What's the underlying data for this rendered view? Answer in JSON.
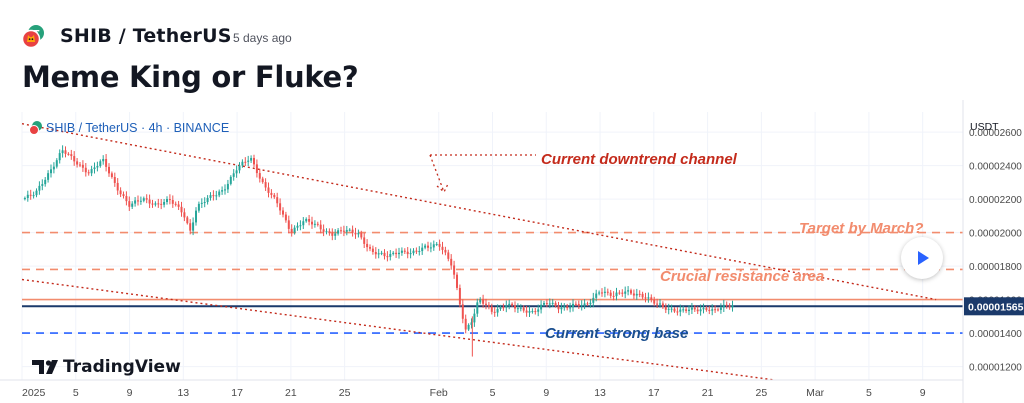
{
  "header": {
    "symbol": "SHIB / TetherUS",
    "time_ago": "5 days ago",
    "idea_title": "Meme King or Fluke?"
  },
  "chart_data": {
    "type": "candlestick",
    "legend": "SHIB / TetherUS · 4h · BINANCE",
    "currency": "USDT",
    "watermark": "TradingView",
    "ylim": [
      1.12e-05,
      2.72e-05
    ],
    "y_ticks": [
      1.2e-05,
      1.4e-05,
      1.6e-05,
      1.8e-05,
      2e-05,
      2.2e-05,
      2.4e-05,
      2.6e-05
    ],
    "y_tick_labels": [
      "0.00001200",
      "0.00001400",
      "0.00001600",
      "0.00001800",
      "0.00002000",
      "0.00002200",
      "0.00002400",
      "0.00002600"
    ],
    "x_dates": [
      "2025-01-01",
      "2025-03-12"
    ],
    "x_ticks": [
      {
        "date": "2025-01-01",
        "label": "2025"
      },
      {
        "date": "2025-01-05",
        "label": "5"
      },
      {
        "date": "2025-01-09",
        "label": "9"
      },
      {
        "date": "2025-01-13",
        "label": "13"
      },
      {
        "date": "2025-01-17",
        "label": "17"
      },
      {
        "date": "2025-01-21",
        "label": "21"
      },
      {
        "date": "2025-01-25",
        "label": "25"
      },
      {
        "date": "2025-02-01",
        "label": "Feb"
      },
      {
        "date": "2025-02-05",
        "label": "5"
      },
      {
        "date": "2025-02-09",
        "label": "9"
      },
      {
        "date": "2025-02-13",
        "label": "13"
      },
      {
        "date": "2025-02-17",
        "label": "17"
      },
      {
        "date": "2025-02-21",
        "label": "21"
      },
      {
        "date": "2025-02-25",
        "label": "25"
      },
      {
        "date": "2025-03-01",
        "label": "Mar"
      },
      {
        "date": "2025-03-05",
        "label": "5"
      },
      {
        "date": "2025-03-09",
        "label": "9"
      }
    ],
    "price_path": [
      {
        "date": "2025-01-01T00",
        "price": 2.2e-05
      },
      {
        "date": "2025-01-02T00",
        "price": 2.23e-05
      },
      {
        "date": "2025-01-03T00",
        "price": 2.36e-05
      },
      {
        "date": "2025-01-04T00",
        "price": 2.49e-05
      },
      {
        "date": "2025-01-05T00",
        "price": 2.42e-05
      },
      {
        "date": "2025-01-06T00",
        "price": 2.36e-05
      },
      {
        "date": "2025-01-07T00",
        "price": 2.43e-05
      },
      {
        "date": "2025-01-08T00",
        "price": 2.28e-05
      },
      {
        "date": "2025-01-09T00",
        "price": 2.16e-05
      },
      {
        "date": "2025-01-10T00",
        "price": 2.2e-05
      },
      {
        "date": "2025-01-11T00",
        "price": 2.17e-05
      },
      {
        "date": "2025-01-12T00",
        "price": 2.19e-05
      },
      {
        "date": "2025-01-13T00",
        "price": 2.12e-05
      },
      {
        "date": "2025-01-13T12",
        "price": 2.01e-05
      },
      {
        "date": "2025-01-14T00",
        "price": 2.15e-05
      },
      {
        "date": "2025-01-15T00",
        "price": 2.21e-05
      },
      {
        "date": "2025-01-16T00",
        "price": 2.26e-05
      },
      {
        "date": "2025-01-17T00",
        "price": 2.38e-05
      },
      {
        "date": "2025-01-18T00",
        "price": 2.45e-05
      },
      {
        "date": "2025-01-19T00",
        "price": 2.28e-05
      },
      {
        "date": "2025-01-20T00",
        "price": 2.17e-05
      },
      {
        "date": "2025-01-21T00",
        "price": 2.01e-05
      },
      {
        "date": "2025-01-22T00",
        "price": 2.07e-05
      },
      {
        "date": "2025-01-23T00",
        "price": 2.04e-05
      },
      {
        "date": "2025-01-24T00",
        "price": 1.99e-05
      },
      {
        "date": "2025-01-25T00",
        "price": 2.01e-05
      },
      {
        "date": "2025-01-26T00",
        "price": 2e-05
      },
      {
        "date": "2025-01-27T00",
        "price": 1.88e-05
      },
      {
        "date": "2025-01-28T00",
        "price": 1.86e-05
      },
      {
        "date": "2025-01-29T00",
        "price": 1.89e-05
      },
      {
        "date": "2025-01-30T00",
        "price": 1.87e-05
      },
      {
        "date": "2025-01-31T00",
        "price": 1.92e-05
      },
      {
        "date": "2025-02-01T00",
        "price": 1.93e-05
      },
      {
        "date": "2025-02-02T00",
        "price": 1.8e-05
      },
      {
        "date": "2025-02-03T00",
        "price": 1.42e-05
      },
      {
        "date": "2025-02-03T12",
        "price": 1.48e-05
      },
      {
        "date": "2025-02-04T00",
        "price": 1.6e-05
      },
      {
        "date": "2025-02-05T00",
        "price": 1.53e-05
      },
      {
        "date": "2025-02-06T00",
        "price": 1.57e-05
      },
      {
        "date": "2025-02-07T00",
        "price": 1.54e-05
      },
      {
        "date": "2025-02-08T00",
        "price": 1.53e-05
      },
      {
        "date": "2025-02-09T00",
        "price": 1.58e-05
      },
      {
        "date": "2025-02-10T00",
        "price": 1.55e-05
      },
      {
        "date": "2025-02-11T00",
        "price": 1.57e-05
      },
      {
        "date": "2025-02-12T00",
        "price": 1.56e-05
      },
      {
        "date": "2025-02-13T00",
        "price": 1.66e-05
      },
      {
        "date": "2025-02-14T00",
        "price": 1.62e-05
      },
      {
        "date": "2025-02-15T00",
        "price": 1.65e-05
      },
      {
        "date": "2025-02-16T00",
        "price": 1.63e-05
      },
      {
        "date": "2025-02-17T00",
        "price": 1.58e-05
      },
      {
        "date": "2025-02-18T00",
        "price": 1.55e-05
      },
      {
        "date": "2025-02-19T00",
        "price": 1.53e-05
      },
      {
        "date": "2025-02-20T00",
        "price": 1.54e-05
      },
      {
        "date": "2025-02-21T00",
        "price": 1.55e-05
      },
      {
        "date": "2025-02-21T12",
        "price": 1.53e-05
      },
      {
        "date": "2025-02-22T00",
        "price": 1.55e-05
      },
      {
        "date": "2025-02-23T00",
        "price": 1.57e-05
      }
    ],
    "price_levels": [
      {
        "name": "target",
        "price": 2e-05,
        "color": "#f28c6e",
        "style": "dashed"
      },
      {
        "name": "upper-resistance",
        "price": 1.78e-05,
        "color": "#f28c6e",
        "style": "dashed"
      },
      {
        "name": "crucial-resistance",
        "price": 1.6e-05,
        "color": "#f28c6e",
        "style": "solid"
      },
      {
        "name": "current-price",
        "price": 1.56e-05,
        "color": "#1b3a6b",
        "style": "solid"
      },
      {
        "name": "strong-base",
        "price": 1.4e-05,
        "color": "#2962ff",
        "style": "dashed"
      }
    ],
    "current_price_label": "0.00001565",
    "channel_lines": [
      {
        "name": "channel-upper",
        "points": [
          {
            "date": "2025-01-01",
            "price": 2.65e-05
          },
          {
            "date": "2025-03-10",
            "price": 1.6e-05
          }
        ]
      },
      {
        "name": "channel-lower",
        "points": [
          {
            "date": "2025-01-01",
            "price": 1.72e-05
          },
          {
            "date": "2025-02-26",
            "price": 1.12e-05
          }
        ]
      }
    ],
    "annotations": [
      {
        "text": "Current downtrend channel",
        "color": "#c42b1c"
      },
      {
        "text": "Target by March?",
        "color": "#f28c6e"
      },
      {
        "text": "Crucial resistance area",
        "color": "#f28c6e"
      },
      {
        "text": "Current strong base",
        "color": "#1b4f8f"
      }
    ],
    "colors": {
      "up": "#26a69a",
      "down": "#ef5350",
      "grid": "#f0f3fa",
      "axis_text": "#4a4a4a"
    }
  }
}
